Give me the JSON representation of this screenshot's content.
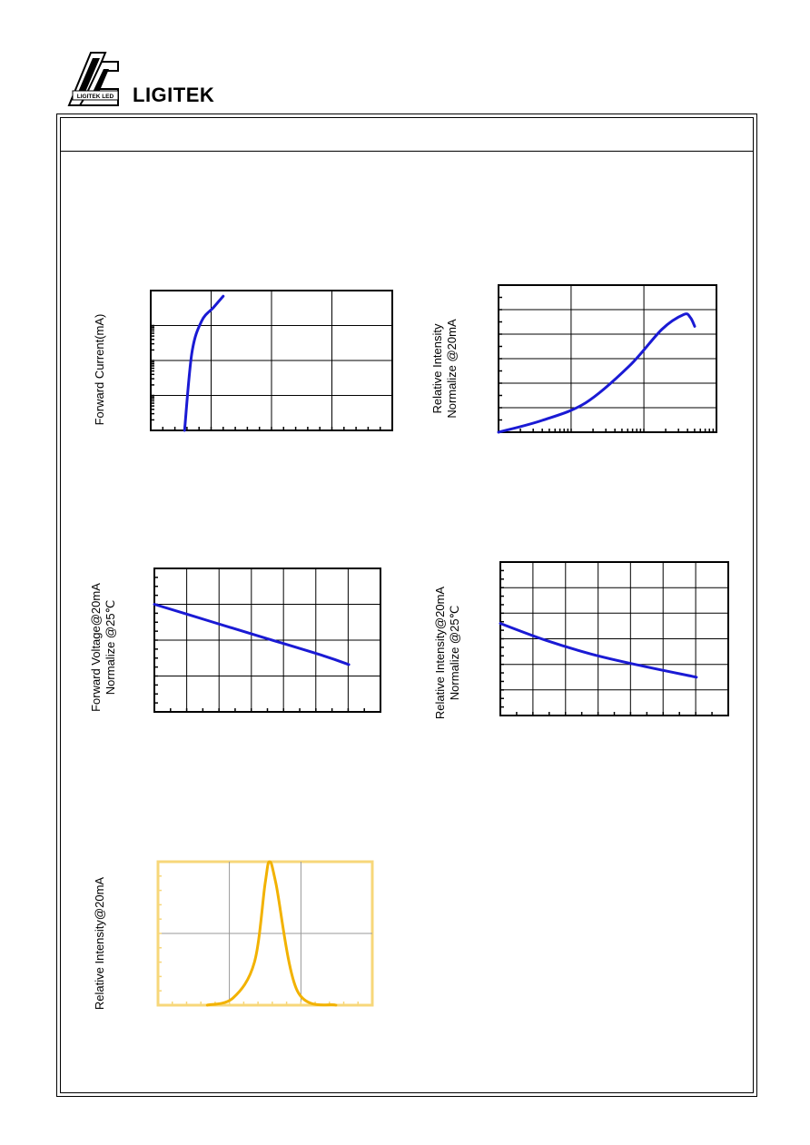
{
  "header": {
    "brand": "LIGITEK",
    "logo_text": "LIGITEK LED"
  },
  "colors": {
    "curve": "#1a1ad4",
    "spectrum": "#f2b200",
    "spectrum_frame": "#f7d77a"
  },
  "charts": {
    "forward_current": {
      "ylabel": "Forward Current(mA)"
    },
    "intensity_current": {
      "ylabel_line1": "Relative Intensity",
      "ylabel_line2": "Normalize @20mA"
    },
    "voltage_temp": {
      "ylabel_line1": "Forward Voltage@20mA",
      "ylabel_line2": "Normalize @25℃"
    },
    "intensity_temp": {
      "ylabel_line1": "Relative Intensity@20mA",
      "ylabel_line2": "Normalize @25℃"
    },
    "spectrum": {
      "ylabel": "Relative Intensity@20mA"
    }
  },
  "chart_data": [
    {
      "type": "line",
      "title": "",
      "ylabel": "Forward Current(mA)",
      "xlabel": "",
      "y_scale": "log",
      "series": [
        {
          "x": [
            0.14,
            0.17,
            0.21,
            0.26,
            0.3
          ],
          "y": [
            0.0,
            0.55,
            0.78,
            0.88,
            0.96
          ]
        }
      ]
    },
    {
      "type": "line",
      "title": "",
      "ylabel": "Relative Intensity Normalize @20mA",
      "xlabel": "",
      "x_scale": "log",
      "series": [
        {
          "x": [
            0.0,
            0.2,
            0.4,
            0.6,
            0.75,
            0.85,
            0.88,
            0.9
          ],
          "y": [
            0.0,
            0.08,
            0.2,
            0.45,
            0.7,
            0.8,
            0.78,
            0.72
          ]
        }
      ]
    },
    {
      "type": "line",
      "title": "",
      "ylabel": "Forward Voltage@20mA Normalize @25℃",
      "xlabel": "",
      "series": [
        {
          "x": [
            0.0,
            0.25,
            0.5,
            0.75,
            0.86
          ],
          "y": [
            0.75,
            0.63,
            0.51,
            0.39,
            0.33
          ]
        }
      ]
    },
    {
      "type": "line",
      "title": "",
      "ylabel": "Relative Intensity@20mA Normalize @25℃",
      "xlabel": "",
      "series": [
        {
          "x": [
            0.0,
            0.2,
            0.4,
            0.6,
            0.86
          ],
          "y": [
            0.6,
            0.49,
            0.4,
            0.33,
            0.25
          ]
        }
      ]
    },
    {
      "type": "line",
      "title": "",
      "ylabel": "Relative Intensity@20mA",
      "xlabel": "",
      "series": [
        {
          "x": [
            0.23,
            0.35,
            0.45,
            0.5,
            0.52,
            0.55,
            0.65,
            0.83
          ],
          "y": [
            0.0,
            0.05,
            0.3,
            0.85,
            1.0,
            0.85,
            0.1,
            0.0
          ]
        }
      ]
    }
  ]
}
